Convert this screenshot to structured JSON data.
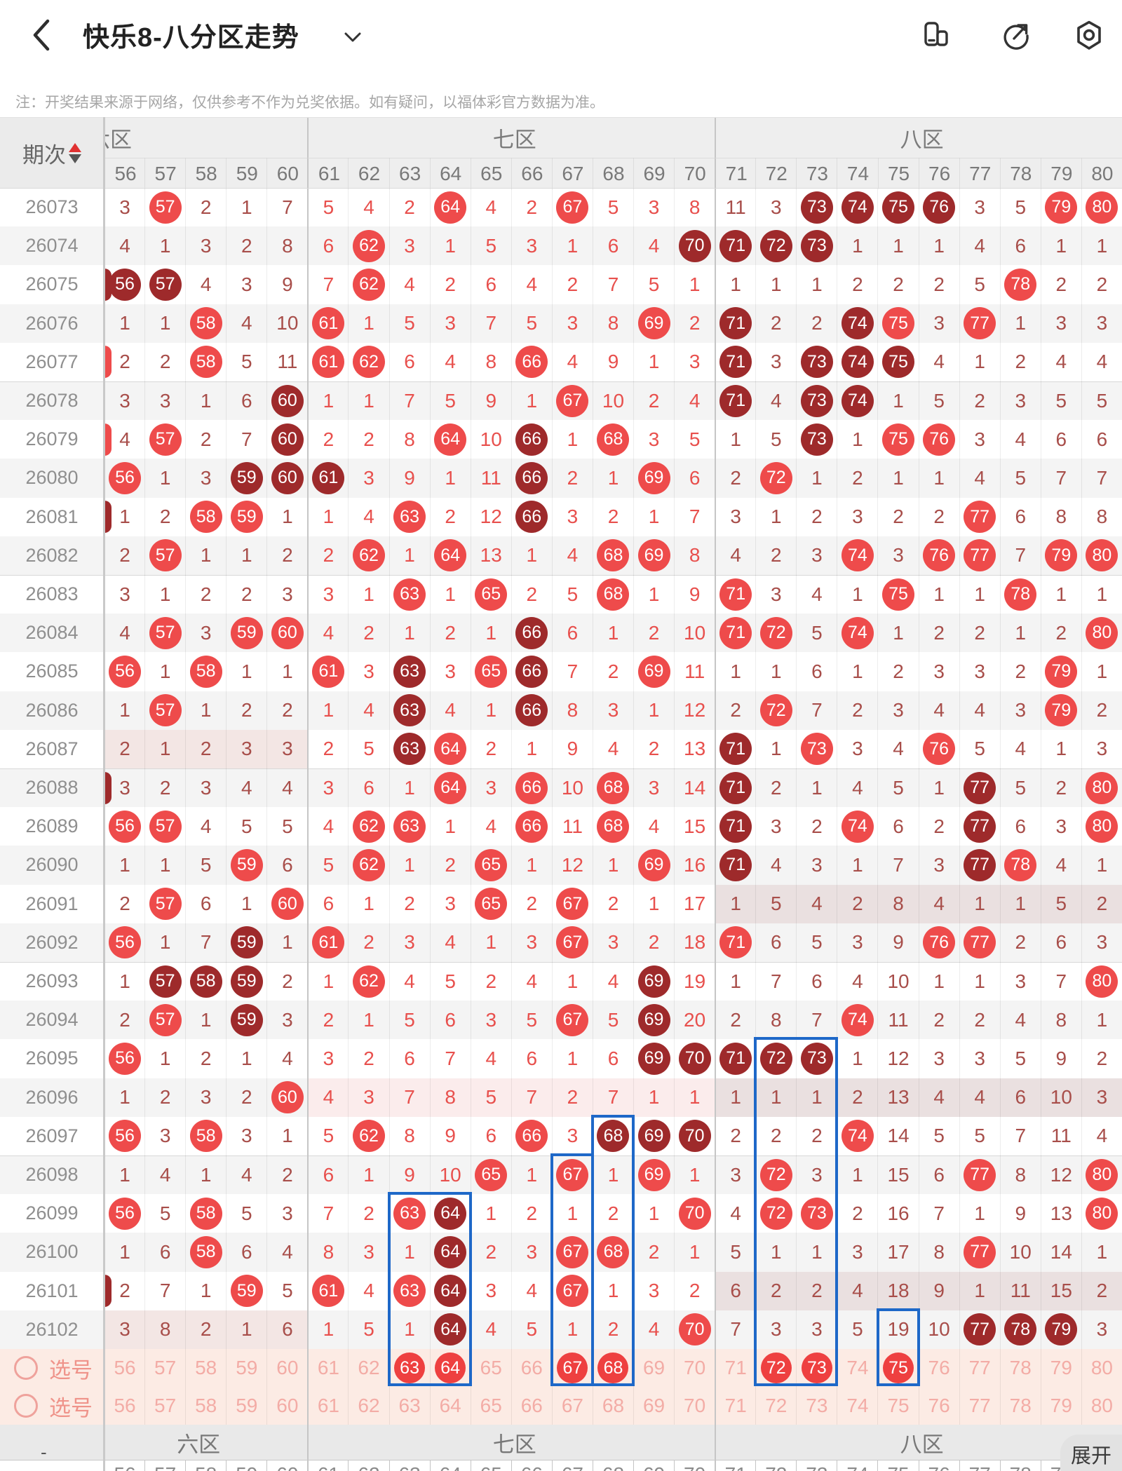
{
  "header": {
    "back_icon": "chevron-left",
    "title": "快乐8-八分区走势",
    "title_caret_icon": "chevron-down",
    "icons": [
      "windows-icon",
      "share-icon",
      "settings-icon"
    ]
  },
  "note": "注：开奖结果来源于网络，仅供参考不作为兑奖依据。如有疑问，以福体彩官方数据为准。",
  "table": {
    "period_label": "期次",
    "zones": [
      {
        "label": "六区",
        "from": 56,
        "to": 60,
        "clipped": true
      },
      {
        "label": "七区",
        "from": 61,
        "to": 70,
        "clipped": false
      },
      {
        "label": "八区",
        "from": 71,
        "to": 80,
        "clipped": false
      }
    ],
    "columns": [
      56,
      57,
      58,
      59,
      60,
      61,
      62,
      63,
      64,
      65,
      66,
      67,
      68,
      69,
      70,
      71,
      72,
      73,
      74,
      75,
      76,
      77,
      78,
      79,
      80
    ],
    "rows": [
      {
        "p": "26073",
        "c": [
          3,
          "57B",
          2,
          1,
          7,
          5,
          4,
          2,
          "64B",
          4,
          2,
          "67B",
          5,
          3,
          8,
          11,
          3,
          "73D",
          "74D",
          "75D",
          "76D",
          3,
          5,
          "79B",
          "80B"
        ]
      },
      {
        "p": "26074",
        "c": [
          4,
          1,
          3,
          2,
          8,
          6,
          "62B",
          3,
          1,
          5,
          3,
          1,
          6,
          4,
          "70D",
          "71D",
          "72D",
          "73D",
          1,
          1,
          1,
          4,
          6,
          1,
          1
        ]
      },
      {
        "p": "26075",
        "peek": "D",
        "c": [
          "56D",
          "57D",
          4,
          3,
          9,
          7,
          "62B",
          4,
          2,
          6,
          4,
          2,
          7,
          5,
          1,
          1,
          1,
          1,
          2,
          2,
          2,
          5,
          "78B",
          2,
          2
        ]
      },
      {
        "p": "26076",
        "c": [
          1,
          1,
          "58B",
          4,
          10,
          "61B",
          1,
          5,
          3,
          7,
          5,
          3,
          8,
          "69B",
          2,
          "71D",
          2,
          2,
          "74D",
          "75B",
          3,
          "77B",
          1,
          3,
          3
        ]
      },
      {
        "p": "26077",
        "peek": "B",
        "c": [
          2,
          2,
          "58B",
          5,
          11,
          "61B",
          "62B",
          6,
          4,
          8,
          "66B",
          4,
          9,
          1,
          3,
          "71D",
          3,
          "73D",
          "74D",
          "75D",
          4,
          1,
          2,
          4,
          4
        ]
      },
      {
        "p": "26078",
        "c": [
          3,
          3,
          1,
          6,
          "60D",
          1,
          1,
          7,
          5,
          9,
          1,
          "67B",
          10,
          2,
          4,
          "71D",
          4,
          "73D",
          "74D",
          1,
          5,
          2,
          3,
          5,
          5
        ]
      },
      {
        "p": "26079",
        "peek": "B",
        "c": [
          4,
          "57B",
          2,
          7,
          "60D",
          2,
          2,
          8,
          "64B",
          10,
          "66D",
          1,
          "68B",
          3,
          5,
          1,
          5,
          "73D",
          1,
          "75B",
          "76B",
          3,
          4,
          6,
          6
        ]
      },
      {
        "p": "26080",
        "c": [
          "56B",
          1,
          3,
          "59D",
          "60D",
          "61D",
          3,
          9,
          1,
          11,
          "66D",
          2,
          1,
          "69B",
          6,
          2,
          "72B",
          1,
          2,
          1,
          1,
          4,
          5,
          7,
          7
        ]
      },
      {
        "p": "26081",
        "peek": "D",
        "c": [
          1,
          2,
          "58B",
          "59B",
          1,
          1,
          4,
          "63B",
          2,
          12,
          "66D",
          3,
          2,
          1,
          7,
          3,
          1,
          2,
          3,
          2,
          2,
          "77B",
          6,
          8,
          8
        ]
      },
      {
        "p": "26082",
        "c": [
          2,
          "57B",
          1,
          1,
          2,
          2,
          "62B",
          1,
          "64B",
          13,
          1,
          4,
          "68B",
          "69B",
          8,
          4,
          2,
          3,
          "74B",
          3,
          "76B",
          "77B",
          7,
          "79B",
          "80B"
        ]
      },
      {
        "p": "26083",
        "c": [
          3,
          1,
          2,
          2,
          3,
          3,
          1,
          "63B",
          1,
          "65B",
          2,
          5,
          "68B",
          1,
          9,
          "71B",
          3,
          4,
          1,
          "75B",
          1,
          1,
          "78B",
          1,
          1
        ]
      },
      {
        "p": "26084",
        "c": [
          4,
          "57B",
          3,
          "59B",
          "60B",
          4,
          2,
          1,
          2,
          1,
          "66D",
          6,
          1,
          2,
          10,
          "71B",
          "72B",
          5,
          "74B",
          1,
          2,
          2,
          1,
          2,
          "80B"
        ]
      },
      {
        "p": "26085",
        "c": [
          "56B",
          1,
          "58B",
          1,
          1,
          "61B",
          3,
          "63D",
          3,
          "65B",
          "66D",
          7,
          2,
          "69B",
          11,
          1,
          1,
          6,
          1,
          2,
          3,
          3,
          2,
          "79B",
          1
        ]
      },
      {
        "p": "26086",
        "c": [
          1,
          "57B",
          1,
          2,
          2,
          1,
          4,
          "63D",
          4,
          1,
          "66D",
          8,
          3,
          1,
          12,
          2,
          "72B",
          7,
          2,
          3,
          4,
          4,
          3,
          "79B",
          2
        ]
      },
      {
        "p": "26087",
        "tint": [
          6
        ],
        "c": [
          2,
          1,
          2,
          3,
          3,
          2,
          5,
          "63D",
          "64B",
          2,
          1,
          9,
          4,
          2,
          13,
          "71D",
          1,
          "73B",
          3,
          4,
          "76B",
          5,
          4,
          1,
          3
        ]
      },
      {
        "p": "26088",
        "peek": "D",
        "c": [
          3,
          2,
          3,
          4,
          4,
          3,
          6,
          1,
          "64B",
          3,
          "66B",
          10,
          "68B",
          3,
          14,
          "71D",
          2,
          1,
          4,
          5,
          1,
          "77D",
          5,
          2,
          "80B"
        ]
      },
      {
        "p": "26089",
        "c": [
          "56B",
          "57B",
          4,
          5,
          5,
          4,
          "62B",
          "63B",
          1,
          4,
          "66B",
          11,
          "68B",
          4,
          15,
          "71D",
          3,
          2,
          "74B",
          6,
          2,
          "77D",
          6,
          3,
          "80B"
        ]
      },
      {
        "p": "26090",
        "c": [
          1,
          1,
          5,
          "59B",
          6,
          5,
          "62B",
          1,
          2,
          "65B",
          1,
          12,
          1,
          "69B",
          16,
          "71D",
          4,
          3,
          1,
          7,
          3,
          "77D",
          "78B",
          4,
          1
        ]
      },
      {
        "p": "26091",
        "tint": [
          8
        ],
        "c": [
          2,
          "57B",
          6,
          1,
          "60B",
          6,
          1,
          2,
          3,
          "65B",
          2,
          "67B",
          2,
          1,
          17,
          1,
          5,
          4,
          2,
          8,
          4,
          1,
          1,
          5,
          2
        ]
      },
      {
        "p": "26092",
        "c": [
          "56B",
          1,
          7,
          "59D",
          1,
          "61B",
          2,
          3,
          4,
          1,
          3,
          "67B",
          3,
          2,
          18,
          "71B",
          6,
          5,
          3,
          9,
          "76B",
          "77B",
          2,
          6,
          3
        ]
      },
      {
        "p": "26093",
        "c": [
          1,
          "57D",
          "58D",
          "59D",
          2,
          1,
          "62B",
          4,
          5,
          2,
          4,
          1,
          4,
          "69D",
          19,
          1,
          7,
          6,
          4,
          10,
          1,
          1,
          3,
          7,
          "80B"
        ]
      },
      {
        "p": "26094",
        "c": [
          2,
          "57B",
          1,
          "59D",
          3,
          2,
          1,
          5,
          6,
          3,
          5,
          "67B",
          5,
          "69D",
          20,
          2,
          8,
          7,
          "74B",
          11,
          2,
          2,
          4,
          8,
          1
        ]
      },
      {
        "p": "26095",
        "c": [
          "56B",
          1,
          2,
          1,
          4,
          3,
          2,
          6,
          7,
          4,
          6,
          1,
          6,
          "69D",
          "70D",
          "71D",
          "72D",
          "73D",
          1,
          12,
          3,
          3,
          5,
          9,
          2
        ]
      },
      {
        "p": "26096",
        "tint": [
          7,
          8
        ],
        "c": [
          1,
          2,
          3,
          2,
          "60B",
          4,
          3,
          7,
          8,
          5,
          7,
          2,
          7,
          1,
          1,
          1,
          1,
          1,
          2,
          13,
          4,
          4,
          6,
          10,
          3
        ]
      },
      {
        "p": "26097",
        "c": [
          "56B",
          3,
          "58B",
          3,
          1,
          5,
          "62B",
          8,
          9,
          6,
          "66B",
          3,
          "68D",
          "69D",
          "70D",
          2,
          2,
          2,
          "74B",
          14,
          5,
          5,
          7,
          11,
          4
        ]
      },
      {
        "p": "26098",
        "c": [
          1,
          4,
          1,
          4,
          2,
          6,
          1,
          9,
          10,
          "65B",
          1,
          "67B",
          1,
          "69B",
          1,
          3,
          "72B",
          3,
          1,
          15,
          6,
          "77B",
          8,
          12,
          "80B"
        ]
      },
      {
        "p": "26099",
        "c": [
          "56B",
          5,
          "58B",
          5,
          3,
          7,
          2,
          "63B",
          "64D",
          1,
          2,
          1,
          2,
          1,
          "70B",
          4,
          "72B",
          "73B",
          2,
          16,
          7,
          1,
          9,
          13,
          "80B"
        ]
      },
      {
        "p": "26100",
        "c": [
          1,
          6,
          "58B",
          6,
          4,
          8,
          3,
          1,
          "64D",
          2,
          3,
          "67B",
          "68B",
          2,
          1,
          5,
          1,
          1,
          3,
          17,
          8,
          "77B",
          10,
          14,
          1
        ]
      },
      {
        "p": "26101",
        "peek": "D",
        "tint": [
          8
        ],
        "c": [
          2,
          7,
          1,
          "59B",
          5,
          "61B",
          4,
          "63B",
          "64D",
          3,
          4,
          "67B",
          1,
          3,
          2,
          6,
          2,
          2,
          4,
          18,
          9,
          1,
          11,
          15,
          2
        ]
      },
      {
        "p": "26102",
        "tint": [
          6
        ],
        "c": [
          3,
          8,
          2,
          1,
          6,
          1,
          5,
          1,
          "64D",
          4,
          5,
          1,
          2,
          4,
          "70B",
          7,
          3,
          3,
          5,
          19,
          10,
          "77D",
          "78D",
          "79D",
          3
        ]
      }
    ]
  },
  "selection_rows": [
    {
      "label": "选号",
      "selected": [
        63,
        64,
        67,
        68,
        72,
        73,
        75
      ]
    },
    {
      "label": "选号",
      "selected": []
    }
  ],
  "highlight_boxes": [
    {
      "from_col": 63,
      "to_col": 64,
      "from_period": "26099"
    },
    {
      "from_col": 67,
      "to_col": 67,
      "from_period": "26098"
    },
    {
      "from_col": 68,
      "to_col": 68,
      "from_period": "26097"
    },
    {
      "from_col": 72,
      "to_col": 73,
      "from_period": "26095"
    },
    {
      "from_col": 75,
      "to_col": 75,
      "from_period": "26102"
    }
  ],
  "footer": {
    "zone_labels": [
      "六区",
      "七区",
      "八区"
    ],
    "dash": "-",
    "expand_label": "展开"
  },
  "colors": {
    "ball_bright": "#ee4b4b",
    "ball_dark": "#9e2a2b",
    "zone7_text": "#e8504d",
    "zone68_text": "#a84e4a",
    "highlight_blue": "#1e68c8",
    "selection_bg": "#fcebe4",
    "selection_pink": "#f3aca6",
    "tint6": "#f3e6e4",
    "tint7": "#fbecec",
    "tint8": "#eae0e0"
  }
}
